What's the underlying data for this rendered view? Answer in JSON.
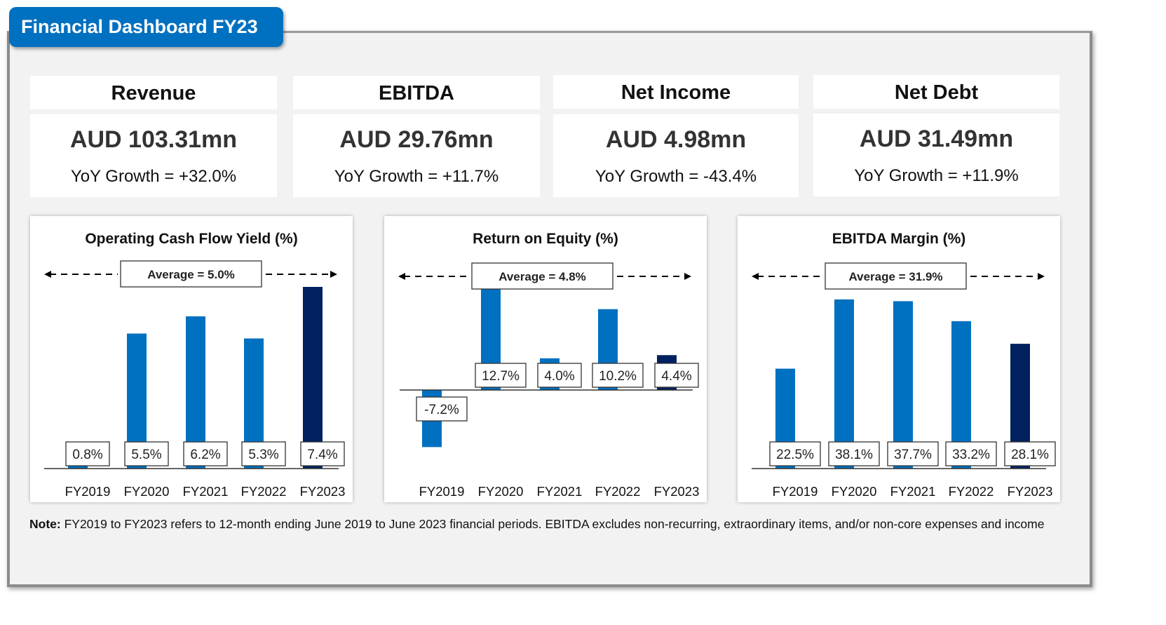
{
  "dashboard": {
    "title": "Financial Dashboard FY23"
  },
  "kpis": [
    {
      "label": "Revenue",
      "value": "AUD 103.31mn",
      "growth": "YoY Growth = +32.0%"
    },
    {
      "label": "EBITDA",
      "value": "AUD 29.76mn",
      "growth": "YoY Growth = +11.7%"
    },
    {
      "label": "Net Income",
      "value": "AUD 4.98mn",
      "growth": "YoY Growth = -43.4%"
    },
    {
      "label": "Net Debt",
      "value": "AUD 31.49mn",
      "growth": "YoY Growth = +11.9%"
    }
  ],
  "colors": {
    "bar": "#0070c0",
    "bar_highlight": "#002060",
    "title_bg": "#0070c0"
  },
  "chart_data": [
    {
      "type": "bar",
      "title": "Operating Cash Flow Yield (%)",
      "categories": [
        "FY2019",
        "FY2020",
        "FY2021",
        "FY2022",
        "FY2023"
      ],
      "values": [
        0.8,
        5.5,
        6.2,
        5.3,
        7.4
      ],
      "labels": [
        "0.8%",
        "5.5%",
        "6.2%",
        "5.3%",
        "7.4%"
      ],
      "average_label": "Average = 5.0%",
      "highlight_index": 4,
      "xlabel": "",
      "ylabel": "",
      "ylim": [
        0,
        7.4
      ]
    },
    {
      "type": "bar",
      "title": "Return on Equity (%)",
      "categories": [
        "FY2019",
        "FY2020",
        "FY2021",
        "FY2022",
        "FY2023"
      ],
      "values": [
        -7.2,
        12.7,
        4.0,
        10.2,
        4.4
      ],
      "labels": [
        "-7.2%",
        "12.7%",
        "4.0%",
        "10.2%",
        "4.4%"
      ],
      "average_label": "Average = 4.8%",
      "highlight_index": 4,
      "xlabel": "",
      "ylabel": "",
      "ylim": [
        -7.2,
        12.7
      ]
    },
    {
      "type": "bar",
      "title": "EBITDA Margin (%)",
      "categories": [
        "FY2019",
        "FY2020",
        "FY2021",
        "FY2022",
        "FY2023"
      ],
      "values": [
        22.5,
        38.1,
        37.7,
        33.2,
        28.1
      ],
      "labels": [
        "22.5%",
        "38.1%",
        "37.7%",
        "33.2%",
        "28.1%"
      ],
      "average_label": "Average = 31.9%",
      "highlight_index": 4,
      "xlabel": "",
      "ylabel": "",
      "ylim": [
        0,
        38.1
      ]
    }
  ],
  "note": {
    "prefix": "Note:",
    "text": " FY2019 to FY2023 refers to 12-month ending June 2019 to June 2023 financial periods. EBITDA excludes non-recurring, extraordinary items, and/or non-core expenses and income"
  }
}
